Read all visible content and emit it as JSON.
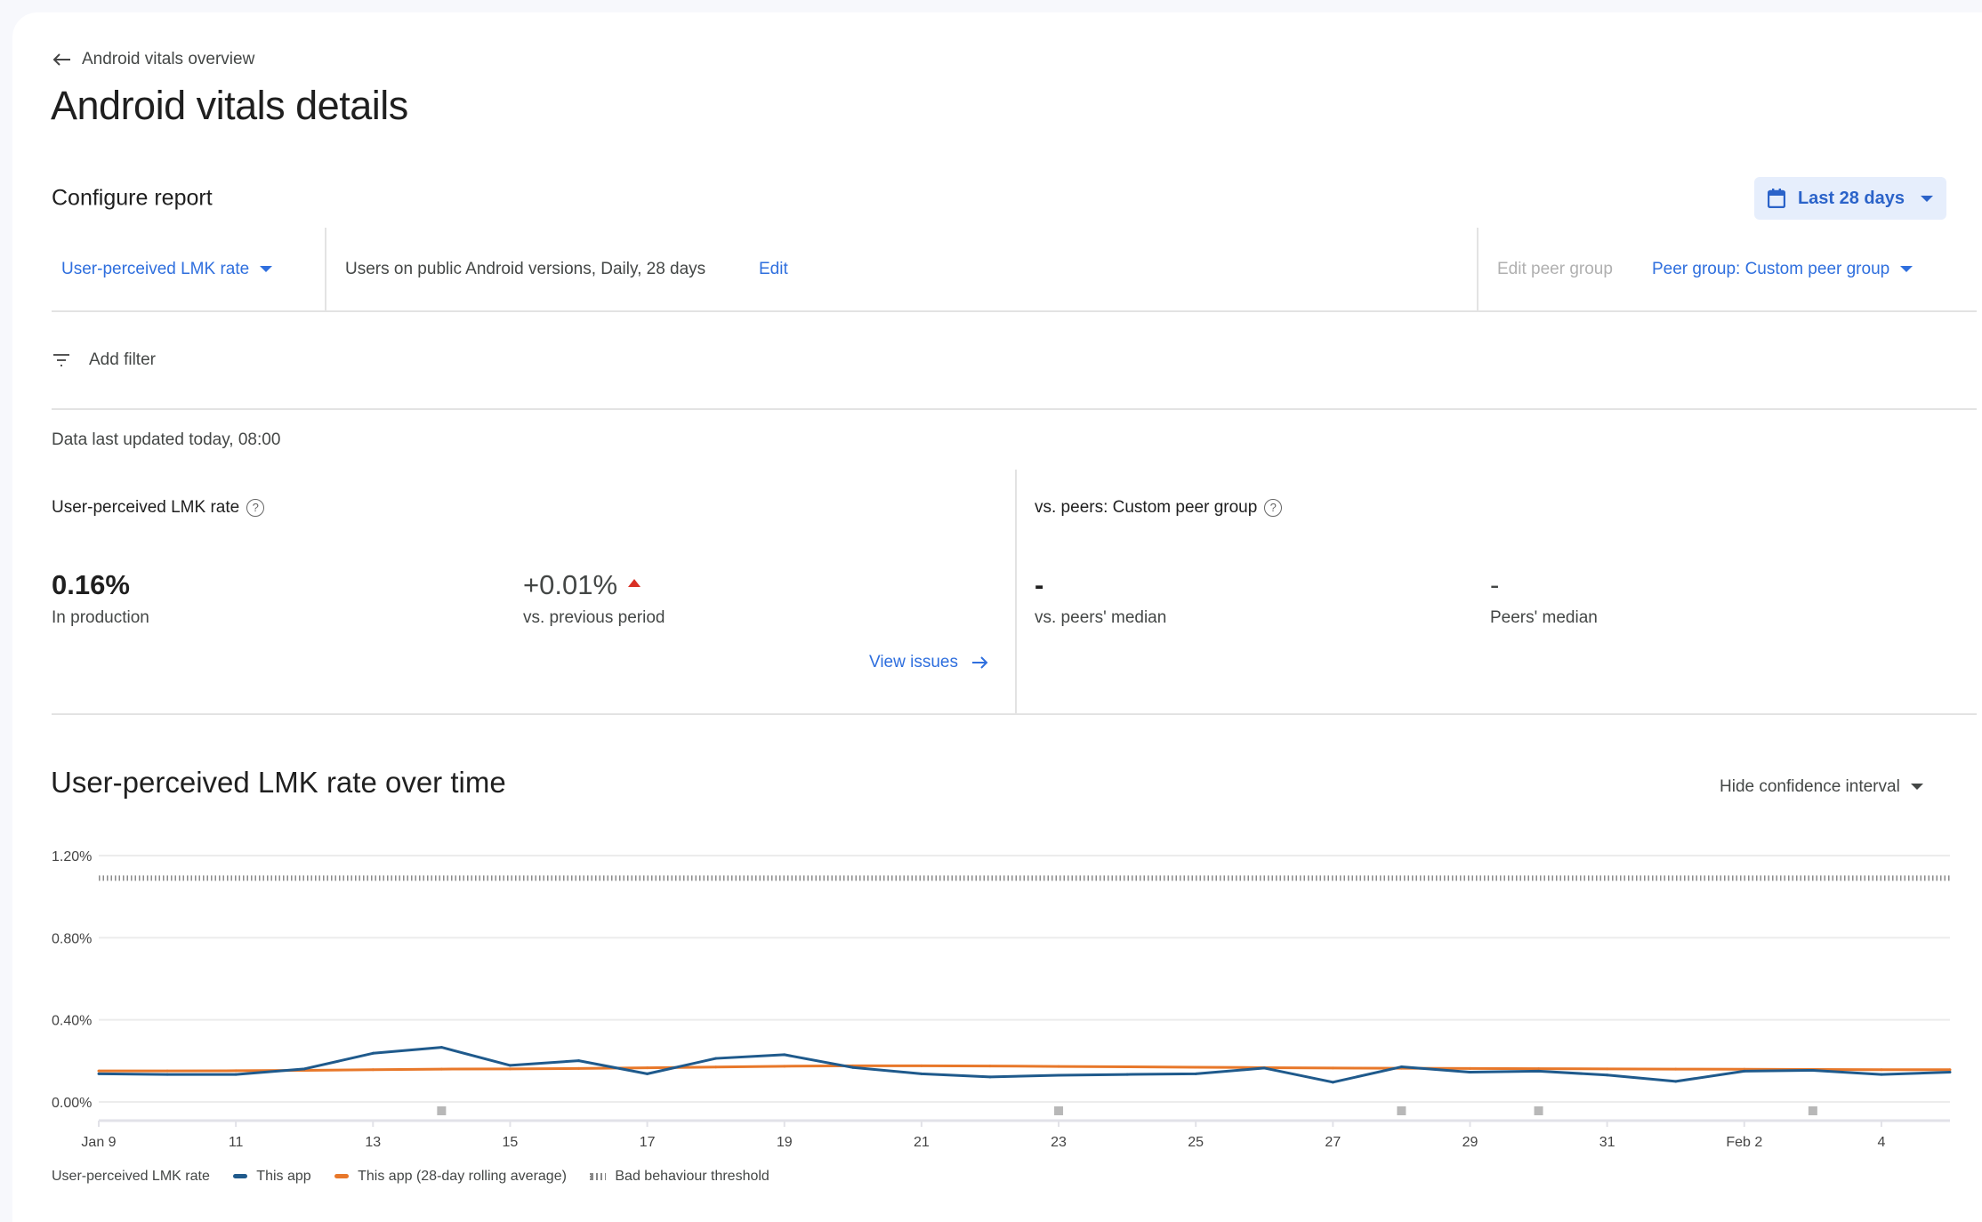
{
  "header": {
    "back_label": "Android vitals overview",
    "title": "Android vitals details"
  },
  "configure": {
    "title": "Configure report",
    "date_range": "Last 28 days",
    "metric": "User-perceived LMK rate",
    "population": "Users on public Android versions, Daily, 28 days",
    "edit_label": "Edit",
    "edit_peer_group": "Edit peer group",
    "peer_group": "Peer group: Custom peer group",
    "add_filter": "Add filter"
  },
  "status": {
    "last_updated": "Data last updated today, 08:00"
  },
  "metrics": {
    "own": {
      "title": "User-perceived LMK rate",
      "value": "0.16%",
      "value_label": "In production",
      "change": "+0.01%",
      "change_direction": "up",
      "change_label": "vs. previous period",
      "view_issues": "View issues"
    },
    "peers": {
      "title": "vs. peers: Custom peer group",
      "vs_median": "-",
      "vs_median_label": "vs. peers' median",
      "median": "-",
      "median_label": "Peers' median"
    }
  },
  "chart_section": {
    "title": "User-perceived LMK rate over time",
    "ci_toggle": "Hide confidence interval"
  },
  "colors": {
    "accent": "#2f6fde",
    "this_app": "#1f5a8c",
    "rolling_avg": "#e8782a",
    "threshold": "#8a8a8a",
    "change_up": "#d93025"
  },
  "chart_data": {
    "type": "line",
    "x": [
      "Jan 9",
      "Jan 10",
      "Jan 11",
      "Jan 12",
      "Jan 13",
      "Jan 14",
      "Jan 15",
      "Jan 16",
      "Jan 17",
      "Jan 18",
      "Jan 19",
      "Jan 20",
      "Jan 21",
      "Jan 22",
      "Jan 23",
      "Jan 24",
      "Jan 25",
      "Jan 26",
      "Jan 27",
      "Jan 28",
      "Jan 29",
      "Jan 30",
      "Jan 31",
      "Feb 1",
      "Feb 2",
      "Feb 3",
      "Feb 4",
      "Feb 5"
    ],
    "x_tick_labels": [
      "Jan 9",
      "11",
      "13",
      "15",
      "17",
      "19",
      "21",
      "23",
      "25",
      "27",
      "29",
      "31",
      "Feb 2",
      "4"
    ],
    "y_tick_labels": [
      "0.00%",
      "0.40%",
      "0.80%",
      "1.20%"
    ],
    "ylim": [
      0,
      1.2
    ],
    "y_unit": "%",
    "grid": true,
    "legend_title": "User-perceived LMK rate",
    "legend_position": "bottom-left",
    "series": [
      {
        "name": "This app",
        "color": "#1f5a8c",
        "values": [
          0.137,
          0.134,
          0.134,
          0.161,
          0.237,
          0.266,
          0.178,
          0.201,
          0.137,
          0.212,
          0.23,
          0.168,
          0.137,
          0.122,
          0.13,
          0.134,
          0.137,
          0.165,
          0.096,
          0.171,
          0.145,
          0.15,
          0.131,
          0.1,
          0.15,
          0.154,
          0.134,
          0.145
        ]
      },
      {
        "name": "This app (28-day rolling average)",
        "color": "#e8782a",
        "values": [
          0.151,
          0.151,
          0.152,
          0.154,
          0.157,
          0.16,
          0.161,
          0.163,
          0.166,
          0.17,
          0.174,
          0.176,
          0.176,
          0.175,
          0.173,
          0.171,
          0.169,
          0.167,
          0.165,
          0.164,
          0.163,
          0.162,
          0.161,
          0.16,
          0.159,
          0.158,
          0.157,
          0.157
        ]
      },
      {
        "name": "Bad behaviour threshold",
        "style": "dotted",
        "color": "#8a8a8a",
        "value": 1.09
      }
    ],
    "event_markers": [
      "Jan 14",
      "Jan 23",
      "Jan 28",
      "Jan 30",
      "Feb 3"
    ]
  }
}
